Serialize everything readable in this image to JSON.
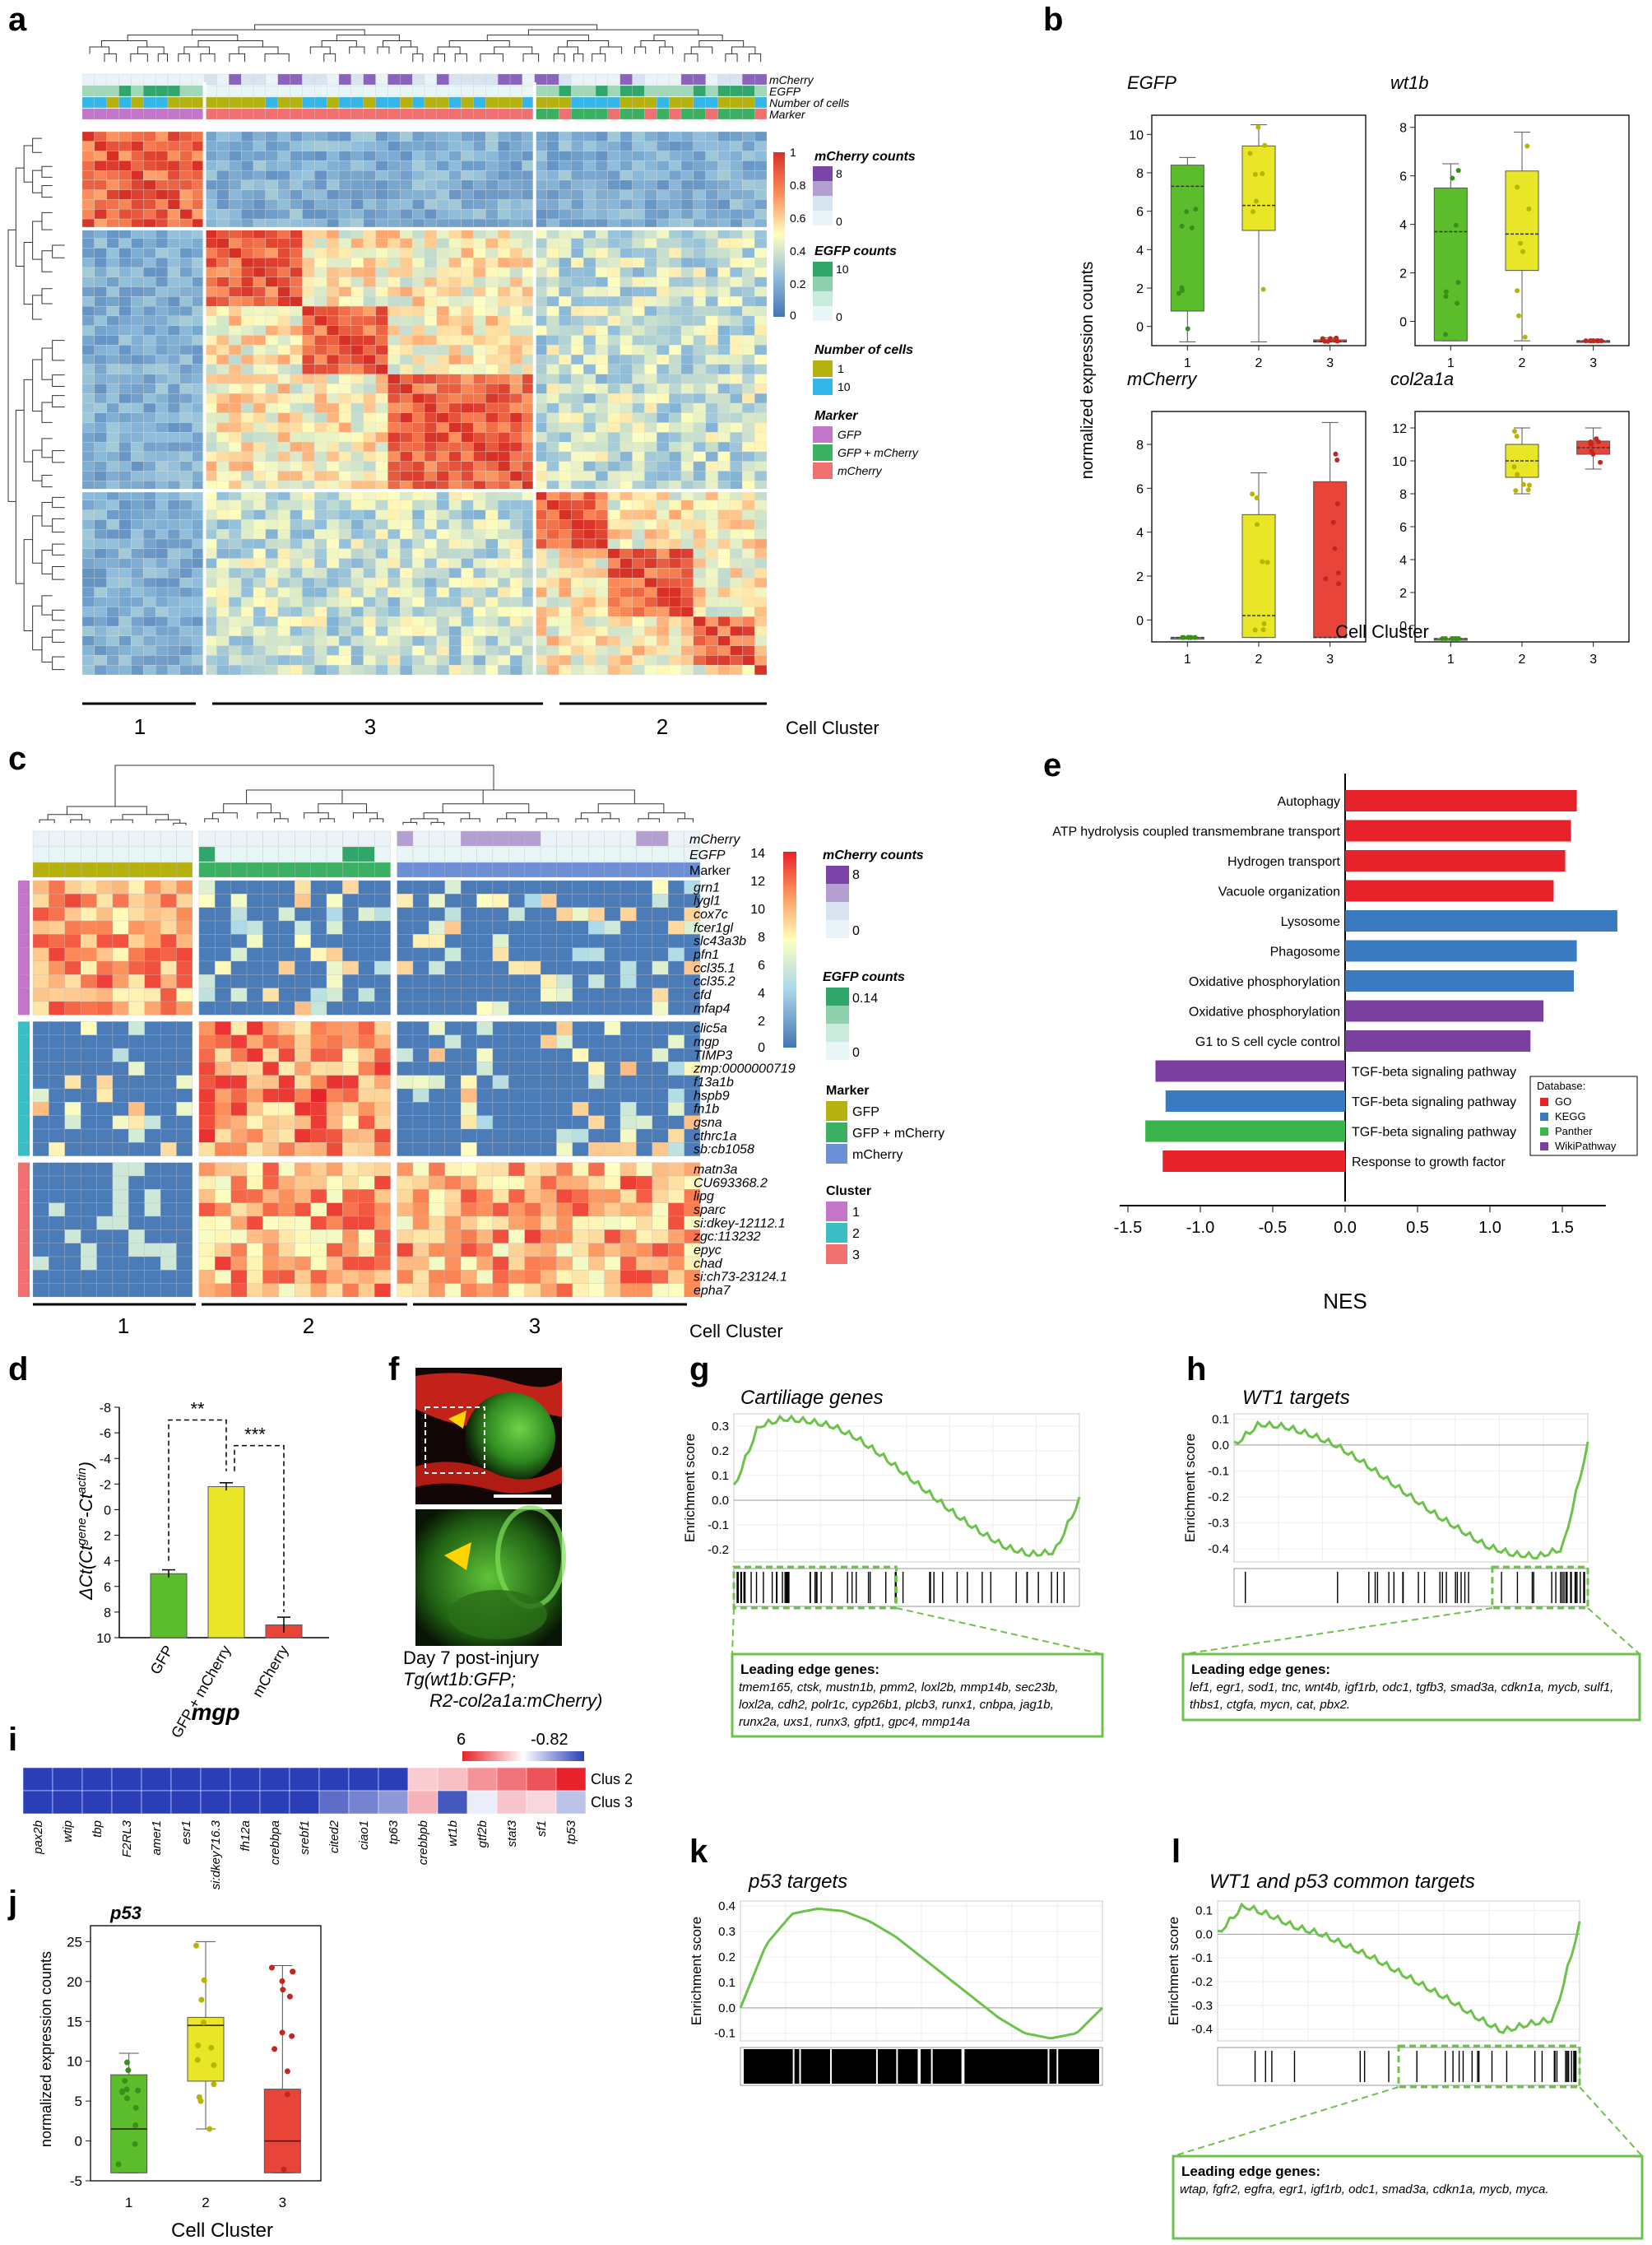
{
  "panel_labels": {
    "a": "a",
    "b": "b",
    "c": "c",
    "d": "d",
    "e": "e",
    "f": "f",
    "g": "g",
    "h": "h",
    "i": "i",
    "j": "j",
    "k": "k",
    "l": "l"
  },
  "colors": {
    "green": "#5bbd2b",
    "yellow": "#e8e626",
    "red": "#e8443a",
    "purple": "#7b44a8",
    "blue": "#4679c1",
    "heat_low": "#4575b4",
    "heat_mid": "#ffffbf",
    "heat_high": "#d73027",
    "gsea_line": "#6cc24a"
  },
  "panel_a": {
    "annotation_rows": [
      "mCherry",
      "EGFP",
      "Number of cells",
      "Marker"
    ],
    "colorbar_ticks": [
      "1",
      "0.8",
      "0.6",
      "0.4",
      "0.2",
      "0"
    ],
    "legend": {
      "mcherry_title": "mCherry counts",
      "mcherry_ticks": [
        "8",
        "0"
      ],
      "egfp_title": "EGFP counts",
      "egfp_ticks": [
        "10",
        "0"
      ],
      "ncells_title": "Number of cells",
      "ncells_items": [
        "1",
        "10"
      ],
      "marker_title": "Marker",
      "marker_items": [
        "GFP",
        "GFP + mCherry",
        "mCherry"
      ]
    },
    "clusters": [
      "1",
      "3",
      "2"
    ],
    "cluster_axis_label": "Cell Cluster"
  },
  "panel_b": {
    "ylabel": "normalized expression counts",
    "xlabel": "Cell Cluster",
    "chart_data": [
      {
        "type": "box",
        "title": "EGFP",
        "categories": [
          "1",
          "2",
          "3"
        ],
        "ylim": [
          -1,
          11
        ],
        "yticks": [
          "0",
          "2",
          "4",
          "6",
          "8",
          "10"
        ],
        "boxes": [
          {
            "min": -0.8,
            "q1": 0.8,
            "median": 7.3,
            "q3": 8.4,
            "max": 8.8
          },
          {
            "min": -0.8,
            "q1": 5,
            "median": 6.3,
            "q3": 9.4,
            "max": 10.5
          },
          {
            "min": -0.8,
            "q1": -0.8,
            "median": -0.8,
            "q3": -0.7,
            "max": -0.6
          }
        ]
      },
      {
        "type": "box",
        "title": "wt1b",
        "categories": [
          "1",
          "2",
          "3"
        ],
        "ylim": [
          -1,
          8.5
        ],
        "yticks": [
          "0",
          "2",
          "4",
          "6",
          "8"
        ],
        "boxes": [
          {
            "min": -0.8,
            "q1": -0.8,
            "median": 3.7,
            "q3": 5.5,
            "max": 6.5
          },
          {
            "min": -0.8,
            "q1": 2.1,
            "median": 3.6,
            "q3": 6.2,
            "max": 7.8
          },
          {
            "min": -0.8,
            "q1": -0.8,
            "median": -0.8,
            "q3": -0.8,
            "max": -0.8
          }
        ]
      },
      {
        "type": "box",
        "title": "mCherry",
        "categories": [
          "1",
          "2",
          "3"
        ],
        "ylim": [
          -1,
          9.5
        ],
        "yticks": [
          "0",
          "2",
          "4",
          "6",
          "8"
        ],
        "boxes": [
          {
            "min": -0.8,
            "q1": -0.8,
            "median": -0.8,
            "q3": -0.8,
            "max": -0.8
          },
          {
            "min": -0.8,
            "q1": -0.8,
            "median": 0.2,
            "q3": 4.8,
            "max": 6.7
          },
          {
            "min": -0.8,
            "q1": -0.8,
            "median": -0.8,
            "q3": 6.3,
            "max": 9
          }
        ]
      },
      {
        "type": "box",
        "title": "col2a1a",
        "categories": [
          "1",
          "2",
          "3"
        ],
        "ylim": [
          -1,
          13
        ],
        "yticks": [
          "0",
          "2",
          "4",
          "6",
          "8",
          "10",
          "12"
        ],
        "boxes": [
          {
            "min": -0.8,
            "q1": -0.8,
            "median": -0.8,
            "q3": -0.8,
            "max": -0.8
          },
          {
            "min": 8,
            "q1": 9,
            "median": 10,
            "q3": 11,
            "max": 12
          },
          {
            "min": 9.5,
            "q1": 10.4,
            "median": 10.8,
            "q3": 11.2,
            "max": 12
          }
        ]
      }
    ]
  },
  "panel_c": {
    "annotation_rows": [
      "mCherry",
      "EGFP",
      "Marker"
    ],
    "genes": [
      "grn1",
      "lygl1",
      "cox7c",
      "fcer1gl",
      "slc43a3b",
      "pfn1",
      "ccl35.1",
      "ccl35.2",
      "cfd",
      "mfap4",
      "clic5a",
      "mgp",
      "TIMP3",
      "zmp:0000000719",
      "f13a1b",
      "hspb9",
      "fn1b",
      "gsna",
      "cthrc1a",
      "sb:cb1058",
      "matn3a",
      "CU693368.2",
      "lipg",
      "sparc",
      "si:dkey-12112.1",
      "zgc:113232",
      "epyc",
      "chad",
      "si:ch73-23124.1",
      "epha7"
    ],
    "colorbar_ticks": [
      "14",
      "12",
      "10",
      "8",
      "6",
      "4",
      "2",
      "0"
    ],
    "legend": {
      "mcherry_title": "mCherry counts",
      "mcherry_ticks": [
        "8",
        "0"
      ],
      "egfp_title": "EGFP counts",
      "egfp_ticks": [
        "0.14",
        "0"
      ],
      "marker_title": "Marker",
      "marker_items": [
        "GFP",
        "GFP + mCherry",
        "mCherry"
      ],
      "cluster_title": "Cluster",
      "cluster_items": [
        "1",
        "2",
        "3"
      ]
    },
    "clusters": [
      "1",
      "2",
      "3"
    ],
    "cluster_axis_label": "Cell Cluster"
  },
  "panel_d": {
    "chart_data": {
      "type": "bar",
      "categories": [
        "GFP",
        "GFP + mCherry",
        "mCherry"
      ],
      "values": [
        5,
        -1.8,
        9
      ],
      "errors": [
        0.3,
        0.3,
        0.6
      ],
      "ylim": [
        -8,
        10
      ],
      "yticks": [
        "-8",
        "-6",
        "-4",
        "-2",
        "0",
        "2",
        "4",
        "6",
        "8",
        "10"
      ],
      "ylabel": "ΔCt(Ct gene -Ct actin)",
      "xlabel": "mgp",
      "sig": [
        "**",
        "***"
      ]
    },
    "ylabel_main": "ΔCt(Ct",
    "ylabel_sup1": "gene",
    "ylabel_mid": "-Ct",
    "ylabel_sup2": "actin",
    "ylabel_end": ")",
    "xlabel": "mgp",
    "sig1": "**",
    "sig2": "***"
  },
  "panel_e": {
    "chart_data": {
      "type": "bar",
      "orientation": "horizontal",
      "xlabel": "NES",
      "xlim": [
        -1.5,
        2.0
      ],
      "xticks": [
        "-1.5",
        "-1.0",
        "-0.5",
        "0.0",
        "0.5",
        "1.0",
        "1.5"
      ],
      "bars": [
        {
          "label": "Autophagy",
          "value": 1.6,
          "db": "GO"
        },
        {
          "label": "ATP hydrolysis coupled transmembrane transport",
          "value": 1.56,
          "db": "GO"
        },
        {
          "label": "Hydrogen transport",
          "value": 1.52,
          "db": "GO"
        },
        {
          "label": "Vacuole organization",
          "value": 1.44,
          "db": "GO"
        },
        {
          "label": "Lysosome",
          "value": 1.88,
          "db": "KEGG"
        },
        {
          "label": "Phagosome",
          "value": 1.6,
          "db": "KEGG"
        },
        {
          "label": "Oxidative phosphorylation",
          "value": 1.58,
          "db": "KEGG"
        },
        {
          "label": "Oxidative phosphorylation",
          "value": 1.37,
          "db": "WikiPathway"
        },
        {
          "label": "G1 to S cell cycle control",
          "value": 1.28,
          "db": "WikiPathway"
        },
        {
          "label": "TGF-beta signaling pathway",
          "value": -1.31,
          "db": "WikiPathway"
        },
        {
          "label": "TGF-beta signaling pathway",
          "value": -1.24,
          "db": "KEGG"
        },
        {
          "label": "TGF-beta signaling pathway",
          "value": -1.38,
          "db": "Panther"
        },
        {
          "label": "Response to growth factor",
          "value": -1.26,
          "db": "GO"
        }
      ]
    },
    "legend_title": "Database:",
    "legend_items": [
      {
        "name": "GO",
        "color": "#e8222a"
      },
      {
        "name": "KEGG",
        "color": "#3a7ac0"
      },
      {
        "name": "Panther",
        "color": "#3ab54a"
      },
      {
        "name": "WikiPathway",
        "color": "#7b3fa0"
      }
    ]
  },
  "panel_f": {
    "caption_line1": "Day 7 post-injury",
    "caption_line2": "Tg(wt1b:GFP;",
    "caption_line3": "R2-col2a1a:mCherry)"
  },
  "panel_g": {
    "title": "Cartiliage genes",
    "ylabel": "Enrichment score",
    "yticks": [
      "0.3",
      "0.2",
      "0.1",
      "0.0",
      "-0.1",
      "-0.2"
    ],
    "leading_title": "Leading edge genes:",
    "leading_text": "tmem165, ctsk, mustn1b, pmm2, loxl2b, mmp14b, sec23b, loxl2a, cdh2, polr1c, cyp26b1, plcb3, runx1, cnbpa, jag1b, runx2a, uxs1, runx3, gfpt1, gpc4, mmp14a",
    "chart_data": {
      "type": "line",
      "ylim": [
        -0.25,
        0.35
      ],
      "y": [
        0.05,
        0.3,
        0.33,
        0.32,
        0.3,
        0.25,
        0.18,
        0.1,
        0.02,
        -0.06,
        -0.13,
        -0.19,
        -0.22,
        -0.21,
        0.0
      ]
    }
  },
  "panel_h": {
    "title": "WT1 targets",
    "ylabel": "Enrichment score",
    "yticks": [
      "0.1",
      "0.0",
      "-0.1",
      "-0.2",
      "-0.3",
      "-0.4"
    ],
    "leading_title": "Leading edge genes:",
    "leading_text": "lef1, egr1, sod1, tnc, wnt4b, igf1rb, odc1, tgfb3, smad3a, cdkn1a, mycb, sulf1, thbs1, ctgfa, mycn, cat, pbx2.",
    "chart_data": {
      "type": "line",
      "ylim": [
        -0.45,
        0.12
      ],
      "y": [
        0.0,
        0.08,
        0.07,
        0.04,
        0.0,
        -0.06,
        -0.13,
        -0.2,
        -0.27,
        -0.33,
        -0.39,
        -0.42,
        -0.43,
        -0.4,
        0.0
      ]
    }
  },
  "panel_i": {
    "scale_max": "6",
    "scale_min": "-0.82",
    "genes": [
      "pax2b",
      "wtip",
      "tbp",
      "F2RL3",
      "amer1",
      "esr1",
      "si:dkey716.3",
      "fh12a",
      "crebbpa",
      "srebf1",
      "cited2",
      "ciao1",
      "tp63",
      "crebbpb",
      "wt1b",
      "gtf2b",
      "stat3",
      "sf1",
      "tp53"
    ],
    "rows": [
      "Clus 2",
      "Clus 3"
    ],
    "chart_data": {
      "type": "heatmap",
      "rows": [
        "Clus 2",
        "Clus 3"
      ],
      "values": [
        [
          -0.82,
          -0.82,
          -0.82,
          -0.82,
          -0.82,
          -0.82,
          -0.82,
          -0.82,
          -0.82,
          -0.82,
          -0.82,
          -0.82,
          -0.82,
          0.8,
          1.2,
          2.5,
          3.5,
          4.5,
          6
        ],
        [
          -0.82,
          -0.82,
          -0.82,
          -0.82,
          -0.82,
          -0.82,
          -0.82,
          -0.82,
          -0.82,
          -0.82,
          -0.6,
          -0.5,
          -0.4,
          1.6,
          -0.7,
          0.0,
          1.0,
          0.5,
          -0.2
        ]
      ]
    }
  },
  "panel_j": {
    "title": "p53",
    "ylabel": "normalized expression counts",
    "xlabel": "Cell Cluster",
    "chart_data": {
      "type": "box",
      "categories": [
        "1",
        "2",
        "3"
      ],
      "ylim": [
        -5,
        27
      ],
      "yticks": [
        "-5",
        "0",
        "5",
        "10",
        "15",
        "20",
        "25"
      ],
      "boxes": [
        {
          "min": -4,
          "q1": -4,
          "median": 1.5,
          "q3": 8.3,
          "max": 11
        },
        {
          "min": 1.5,
          "q1": 7.5,
          "median": 14.5,
          "q3": 15.5,
          "max": 25
        },
        {
          "min": -4,
          "q1": -4,
          "median": 0,
          "q3": 6.5,
          "max": 22
        }
      ]
    }
  },
  "panel_k": {
    "title": "p53 targets",
    "ylabel": "Enrichment score",
    "yticks": [
      "0.4",
      "0.3",
      "0.2",
      "0.1",
      "0.0",
      "-0.1"
    ],
    "chart_data": {
      "type": "line",
      "ylim": [
        -0.13,
        0.42
      ],
      "y": [
        0.0,
        0.25,
        0.37,
        0.39,
        0.38,
        0.34,
        0.28,
        0.2,
        0.12,
        0.04,
        -0.04,
        -0.1,
        -0.12,
        -0.1,
        0.0
      ]
    }
  },
  "panel_l": {
    "title": "WT1 and p53 common targets",
    "ylabel": "Enrichment score",
    "yticks": [
      "0.1",
      "0.0",
      "-0.1",
      "-0.2",
      "-0.3",
      "-0.4"
    ],
    "leading_title": "Leading edge genes:",
    "leading_text": "wtap, fgfr2, egfra, egr1, igf1rb, odc1, smad3a, cdkn1a, mycb, myca.",
    "chart_data": {
      "type": "line",
      "ylim": [
        -0.45,
        0.14
      ],
      "y": [
        0.0,
        0.12,
        0.08,
        0.03,
        0.0,
        -0.05,
        -0.1,
        -0.16,
        -0.22,
        -0.28,
        -0.35,
        -0.41,
        -0.38,
        -0.36,
        0.04
      ]
    }
  }
}
